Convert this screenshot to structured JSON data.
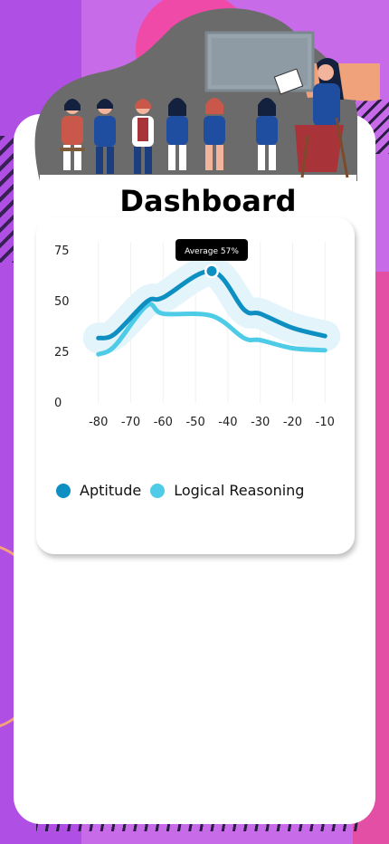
{
  "page": {
    "title": "Dashboard"
  },
  "chart_data": {
    "type": "line",
    "x": [
      -80,
      -70,
      -60,
      -50,
      -40,
      -30,
      -20,
      -10
    ],
    "xticks": [
      -80,
      -70,
      -60,
      -50,
      -40,
      -30,
      -20,
      -10
    ],
    "yticks": [
      0,
      25,
      50,
      75
    ],
    "ylim": [
      0,
      75
    ],
    "xlim": [
      -83,
      -7
    ],
    "series": [
      {
        "name": "Aptitude",
        "color": "#0d8fc2",
        "values": [
          32,
          34,
          50,
          52,
          65,
          46,
          44,
          37,
          33
        ],
        "x": [
          -80,
          -75,
          -65,
          -60,
          -45,
          -35,
          -30,
          -20,
          -10
        ]
      },
      {
        "name": "Logical Reasoning",
        "color": "#4ecbe6",
        "values": [
          24,
          28,
          48,
          44,
          43,
          32,
          31,
          27,
          26
        ],
        "x": [
          -80,
          -75,
          -65,
          -60,
          -45,
          -35,
          -30,
          -20,
          -10
        ]
      }
    ],
    "tooltip": {
      "label": "Average 57%",
      "x": -45,
      "y": 65
    },
    "legend_position": "bottom-left",
    "grid": true
  },
  "legend": [
    {
      "label": "Aptitude",
      "color": "#0d8fc2"
    },
    {
      "label": "Logical Reasoning",
      "color": "#4ecbe6"
    }
  ]
}
